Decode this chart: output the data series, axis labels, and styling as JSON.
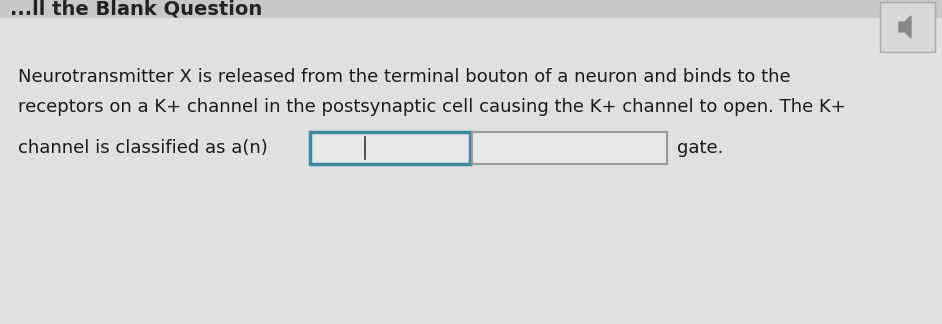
{
  "background_color": "#d8d8d8",
  "body_lines": [
    "Neurotransmitter X is released from the terminal bouton of a neuron and binds to the",
    "receptors on a K+ channel in the postsynaptic cell causing the K+ channel to open. The K+"
  ],
  "inline_prefix": "channel is classified as a(n)",
  "inline_suffix": "gate.",
  "box1_color": "#3a8a9e",
  "box2_color": "#999999",
  "box_fill": "#e8e8e8",
  "text_color": "#1a1a1a",
  "font_size": 13.0,
  "fig_width": 9.42,
  "fig_height": 3.24,
  "dpi": 100
}
